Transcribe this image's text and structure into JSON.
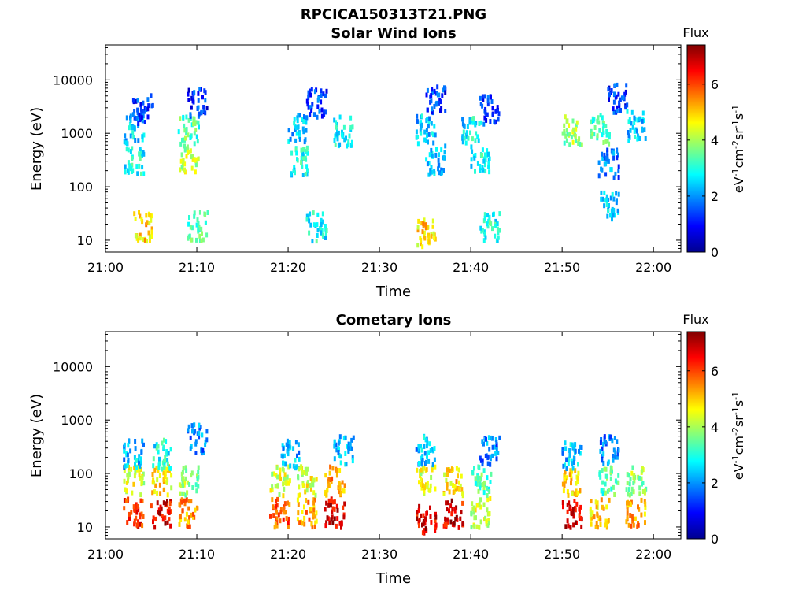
{
  "figure_title": "RPCICA150313T21.PNG",
  "colors": {
    "colormap": "jet",
    "background": "#ffffff",
    "axis": "#000000"
  },
  "chart_data": [
    {
      "type": "heatmap",
      "title": "Solar Wind Ions",
      "xlabel": "Time",
      "ylabel": "Energy (eV)",
      "yscale": "log",
      "xlim": [
        "21:00",
        "22:03"
      ],
      "ylim": [
        6,
        45000
      ],
      "x_ticks": [
        "21:00",
        "21:10",
        "21:20",
        "21:30",
        "21:40",
        "21:50",
        "22:00"
      ],
      "y_ticks": [
        "10",
        "100",
        "1000",
        "10000"
      ],
      "colorbar": {
        "label": "Flux",
        "unit_label": "eV-1cm-2sr-1s-1",
        "range": [
          0,
          7.4
        ],
        "ticks": [
          "0",
          "2",
          "4",
          "6"
        ]
      },
      "clusters": [
        {
          "t": "21:03",
          "e": 1300,
          "v": 2.5
        },
        {
          "t": "21:03",
          "e": 330,
          "v": 3.0
        },
        {
          "t": "21:04",
          "e": 20,
          "v": 5.0
        },
        {
          "t": "21:04",
          "e": 3000,
          "v": 1.5
        },
        {
          "t": "21:09",
          "e": 1200,
          "v": 3.5
        },
        {
          "t": "21:09",
          "e": 350,
          "v": 4.2
        },
        {
          "t": "21:10",
          "e": 20,
          "v": 3.5
        },
        {
          "t": "21:10",
          "e": 4000,
          "v": 1.4
        },
        {
          "t": "21:21",
          "e": 1300,
          "v": 2.5
        },
        {
          "t": "21:21",
          "e": 320,
          "v": 3.0
        },
        {
          "t": "21:23",
          "e": 20,
          "v": 3.0
        },
        {
          "t": "21:23",
          "e": 4000,
          "v": 1.5
        },
        {
          "t": "21:26",
          "e": 1200,
          "v": 3.0
        },
        {
          "t": "21:35",
          "e": 1300,
          "v": 2.5
        },
        {
          "t": "21:35",
          "e": 15,
          "v": 5.0
        },
        {
          "t": "21:36",
          "e": 350,
          "v": 2.5
        },
        {
          "t": "21:36",
          "e": 5000,
          "v": 1.5
        },
        {
          "t": "21:40",
          "e": 1300,
          "v": 2.8
        },
        {
          "t": "21:41",
          "e": 350,
          "v": 3.0
        },
        {
          "t": "21:42",
          "e": 20,
          "v": 3.0
        },
        {
          "t": "21:42",
          "e": 3000,
          "v": 1.5
        },
        {
          "t": "21:51",
          "e": 1200,
          "v": 4.0
        },
        {
          "t": "21:54",
          "e": 1300,
          "v": 3.5
        },
        {
          "t": "21:55",
          "e": 300,
          "v": 2.0
        },
        {
          "t": "21:55",
          "e": 50,
          "v": 2.5
        },
        {
          "t": "21:56",
          "e": 5000,
          "v": 1.4
        },
        {
          "t": "21:58",
          "e": 1500,
          "v": 2.5
        }
      ]
    },
    {
      "type": "heatmap",
      "title": "Cometary Ions",
      "xlabel": "Time",
      "ylabel": "Energy (eV)",
      "yscale": "log",
      "xlim": [
        "21:00",
        "22:03"
      ],
      "ylim": [
        6,
        45000
      ],
      "x_ticks": [
        "21:00",
        "21:10",
        "21:20",
        "21:30",
        "21:40",
        "21:50",
        "22:00"
      ],
      "y_ticks": [
        "10",
        "100",
        "1000",
        "10000"
      ],
      "colorbar": {
        "label": "Flux",
        "unit_label": "eV-1cm-2sr-1s-1",
        "range": [
          0,
          7.4
        ],
        "ticks": [
          "0",
          "2",
          "4",
          "6"
        ]
      },
      "clusters": [
        {
          "t": "21:03",
          "e": 20,
          "v": 6.5
        },
        {
          "t": "21:03",
          "e": 80,
          "v": 4.5
        },
        {
          "t": "21:03",
          "e": 250,
          "v": 2.5
        },
        {
          "t": "21:06",
          "e": 20,
          "v": 6.8
        },
        {
          "t": "21:06",
          "e": 80,
          "v": 5.0
        },
        {
          "t": "21:06",
          "e": 250,
          "v": 3.0
        },
        {
          "t": "21:09",
          "e": 20,
          "v": 5.5
        },
        {
          "t": "21:09",
          "e": 80,
          "v": 4.0
        },
        {
          "t": "21:10",
          "e": 500,
          "v": 2.0
        },
        {
          "t": "21:19",
          "e": 20,
          "v": 6.0
        },
        {
          "t": "21:19",
          "e": 80,
          "v": 4.5
        },
        {
          "t": "21:20",
          "e": 250,
          "v": 2.5
        },
        {
          "t": "21:22",
          "e": 20,
          "v": 5.5
        },
        {
          "t": "21:22",
          "e": 80,
          "v": 4.5
        },
        {
          "t": "21:25",
          "e": 20,
          "v": 6.8
        },
        {
          "t": "21:25",
          "e": 80,
          "v": 5.5
        },
        {
          "t": "21:26",
          "e": 300,
          "v": 2.5
        },
        {
          "t": "21:35",
          "e": 15,
          "v": 6.8
        },
        {
          "t": "21:35",
          "e": 80,
          "v": 4.5
        },
        {
          "t": "21:35",
          "e": 300,
          "v": 2.5
        },
        {
          "t": "21:38",
          "e": 20,
          "v": 6.8
        },
        {
          "t": "21:38",
          "e": 80,
          "v": 5.0
        },
        {
          "t": "21:41",
          "e": 20,
          "v": 4.5
        },
        {
          "t": "21:41",
          "e": 80,
          "v": 3.5
        },
        {
          "t": "21:42",
          "e": 300,
          "v": 2.0
        },
        {
          "t": "21:51",
          "e": 20,
          "v": 6.8
        },
        {
          "t": "21:51",
          "e": 80,
          "v": 5.0
        },
        {
          "t": "21:51",
          "e": 250,
          "v": 2.5
        },
        {
          "t": "21:54",
          "e": 20,
          "v": 5.0
        },
        {
          "t": "21:55",
          "e": 80,
          "v": 3.5
        },
        {
          "t": "21:55",
          "e": 300,
          "v": 2.0
        },
        {
          "t": "21:58",
          "e": 20,
          "v": 5.5
        },
        {
          "t": "21:58",
          "e": 80,
          "v": 4.0
        }
      ]
    }
  ]
}
